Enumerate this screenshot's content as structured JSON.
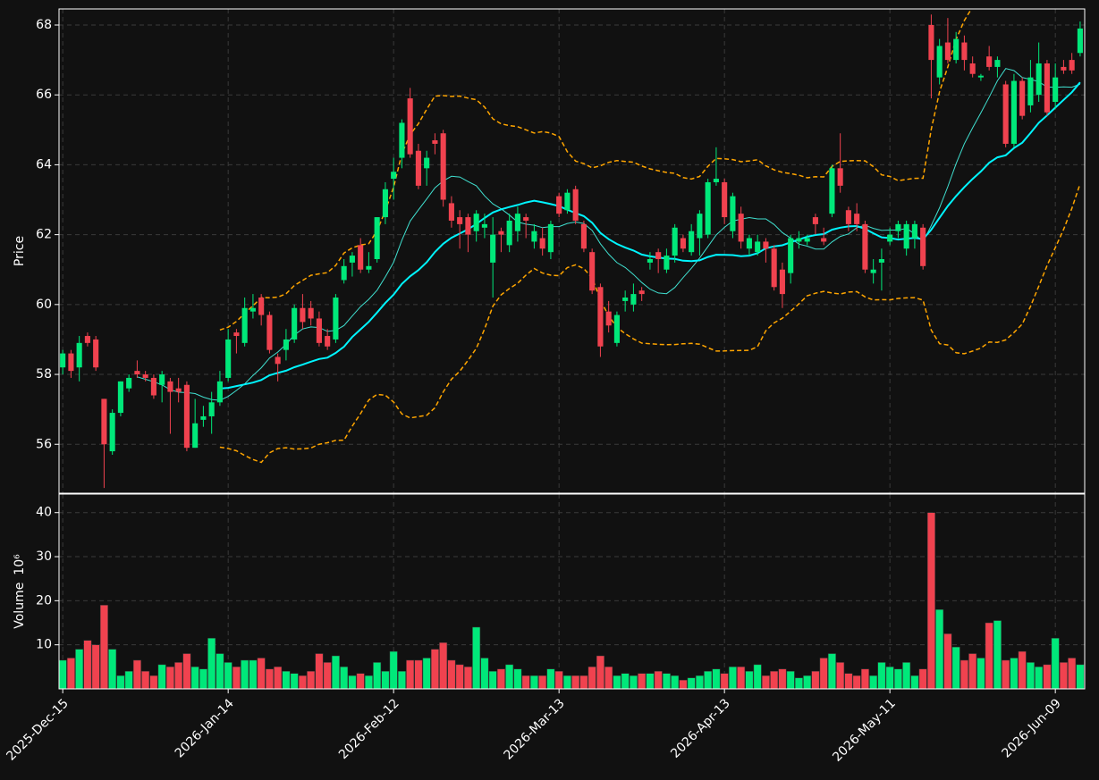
{
  "chart_data": {
    "type": "candlestick",
    "ylabel": "Price",
    "volume_ylabel": "Volume",
    "volume_scale_label": "10⁶",
    "up_color": "#00e87a",
    "down_color": "#f0424f",
    "grid": true,
    "mav": [
      10,
      20
    ],
    "mav_colors": [
      "#40e0d0",
      "#00f5ff"
    ],
    "bollinger": {
      "window": 20,
      "std": 2,
      "color": "#ffa500"
    },
    "xlim": [
      -0.45,
      123.55
    ],
    "xticks": [
      {
        "value": 0,
        "label": "2025-Dec-15"
      },
      {
        "value": 20,
        "label": "2026-Jan-14"
      },
      {
        "value": 40,
        "label": "2026-Feb-12"
      },
      {
        "value": 60,
        "label": "2026-Mar-13"
      },
      {
        "value": 80,
        "label": "2026-Apr-13"
      },
      {
        "value": 100,
        "label": "2026-May-11"
      },
      {
        "value": 120,
        "label": "2026-Jun-09"
      }
    ],
    "ylim": [
      54.6,
      68.46
    ],
    "yticks": [
      56,
      58,
      60,
      62,
      64,
      66,
      68
    ],
    "volume_ylim": [
      0,
      44.2
    ],
    "volume_yticks": [
      10,
      20,
      30,
      40
    ],
    "open": [
      58.2,
      58.6,
      58.2,
      59.1,
      59.0,
      57.3,
      55.8,
      56.9,
      57.6,
      58.1,
      58.0,
      57.9,
      57.7,
      57.8,
      57.6,
      57.7,
      55.9,
      56.7,
      56.8,
      57.2,
      57.9,
      59.2,
      58.9,
      59.8,
      60.2,
      59.7,
      58.5,
      58.7,
      59.0,
      59.9,
      59.9,
      59.6,
      59.1,
      59.0,
      60.7,
      61.2,
      61.7,
      61.0,
      61.3,
      62.5,
      63.6,
      64.2,
      65.9,
      64.4,
      63.9,
      64.7,
      64.9,
      62.9,
      62.5,
      62.5,
      62.1,
      62.2,
      61.2,
      62.1,
      61.7,
      62.1,
      62.5,
      61.8,
      61.9,
      61.5,
      63.1,
      62.7,
      63.3,
      62.3,
      61.5,
      60.5,
      59.8,
      58.9,
      60.1,
      60.0,
      60.4,
      61.2,
      61.5,
      61.0,
      61.4,
      61.9,
      61.5,
      61.9,
      62.0,
      63.5,
      63.5,
      62.1,
      62.6,
      61.6,
      61.5,
      61.8,
      61.6,
      61.0,
      60.9,
      61.8,
      61.8,
      62.5,
      61.9,
      62.6,
      63.9,
      62.7,
      62.6,
      62.3,
      60.9,
      61.2,
      61.8,
      62.1,
      61.6,
      61.9,
      62.2,
      68.0,
      66.5,
      67.5,
      67.0,
      67.5,
      66.9,
      66.5,
      67.1,
      66.8,
      66.3,
      64.6,
      66.4,
      65.7,
      66.0,
      66.9,
      65.8,
      66.8,
      67.0,
      67.2
    ],
    "high": [
      58.7,
      58.7,
      59.1,
      59.2,
      59.1,
      57.3,
      57.0,
      57.8,
      58.0,
      58.4,
      58.1,
      58.0,
      58.1,
      57.9,
      57.9,
      57.8,
      57.3,
      57.1,
      57.5,
      58.1,
      59.3,
      59.3,
      60.2,
      60.3,
      60.3,
      59.8,
      58.6,
      59.3,
      60.0,
      60.3,
      60.1,
      59.8,
      59.3,
      60.3,
      61.3,
      61.5,
      61.9,
      61.5,
      62.5,
      63.5,
      64.2,
      65.3,
      66.2,
      64.6,
      64.4,
      64.9,
      65.0,
      63.1,
      62.7,
      62.6,
      62.7,
      62.6,
      62.5,
      62.2,
      62.6,
      62.8,
      62.6,
      62.3,
      62.2,
      62.4,
      63.2,
      63.3,
      63.4,
      62.4,
      61.6,
      60.6,
      60.1,
      59.8,
      60.4,
      60.6,
      60.5,
      61.5,
      61.6,
      61.6,
      62.3,
      62.0,
      62.3,
      62.7,
      63.6,
      64.5,
      63.6,
      63.2,
      62.8,
      62.0,
      62.0,
      61.9,
      61.7,
      61.2,
      62.0,
      62.1,
      62.0,
      62.6,
      62.2,
      64.0,
      64.9,
      62.8,
      62.9,
      62.4,
      61.3,
      61.6,
      62.2,
      62.4,
      62.4,
      62.4,
      62.3,
      68.3,
      67.6,
      68.2,
      67.8,
      67.7,
      67.1,
      66.6,
      67.4,
      67.1,
      66.4,
      66.6,
      66.5,
      67.0,
      67.5,
      67.0,
      66.9,
      67.0,
      67.2,
      68.1
    ],
    "low": [
      58.0,
      57.9,
      57.8,
      58.8,
      58.1,
      54.75,
      55.7,
      56.8,
      57.5,
      57.9,
      57.8,
      57.3,
      57.2,
      56.3,
      57.2,
      55.8,
      55.9,
      56.5,
      56.3,
      57.1,
      57.8,
      58.6,
      58.8,
      59.6,
      59.4,
      58.6,
      57.8,
      58.4,
      58.9,
      59.3,
      59.4,
      58.8,
      58.7,
      58.9,
      60.6,
      60.8,
      60.9,
      60.9,
      61.2,
      62.3,
      63.0,
      63.9,
      64.2,
      63.3,
      63.4,
      64.3,
      62.8,
      62.2,
      61.6,
      61.5,
      61.8,
      61.9,
      60.2,
      61.5,
      61.5,
      61.8,
      61.9,
      61.6,
      61.4,
      61.3,
      62.5,
      62.6,
      62.3,
      61.5,
      60.3,
      58.5,
      59.2,
      58.8,
      59.8,
      59.8,
      60.1,
      61.0,
      60.9,
      60.9,
      61.2,
      61.5,
      61.4,
      61.4,
      61.9,
      63.4,
      62.3,
      61.9,
      61.6,
      61.4,
      61.4,
      61.2,
      60.4,
      59.9,
      60.6,
      61.6,
      61.7,
      62.0,
      61.7,
      62.5,
      63.2,
      62.1,
      62.1,
      60.9,
      60.6,
      60.4,
      61.7,
      61.9,
      61.4,
      61.6,
      61.0,
      65.9,
      66.3,
      66.9,
      66.9,
      66.7,
      66.5,
      66.4,
      66.7,
      66.5,
      64.5,
      64.5,
      65.3,
      65.5,
      65.8,
      65.4,
      65.6,
      66.6,
      66.6,
      67.1
    ],
    "close": [
      58.6,
      58.1,
      58.9,
      58.9,
      58.2,
      56.0,
      56.9,
      57.8,
      57.9,
      58.0,
      57.9,
      57.4,
      58.0,
      57.5,
      57.5,
      55.9,
      56.6,
      56.8,
      57.2,
      57.8,
      59.0,
      59.1,
      59.9,
      59.9,
      59.7,
      58.7,
      58.3,
      59.0,
      59.9,
      59.5,
      59.6,
      58.9,
      58.8,
      60.2,
      61.1,
      61.4,
      61.0,
      61.1,
      62.5,
      63.3,
      63.8,
      65.2,
      64.3,
      63.4,
      64.2,
      64.6,
      63.0,
      62.4,
      62.3,
      62.0,
      62.6,
      62.3,
      62.0,
      62.0,
      62.4,
      62.6,
      62.4,
      62.1,
      61.6,
      62.3,
      62.6,
      63.2,
      62.4,
      61.6,
      60.4,
      58.8,
      59.4,
      59.7,
      60.2,
      60.3,
      60.3,
      61.3,
      61.3,
      61.4,
      62.2,
      61.6,
      62.1,
      62.6,
      63.5,
      63.6,
      62.5,
      63.1,
      61.8,
      61.9,
      61.8,
      61.6,
      60.5,
      60.3,
      61.9,
      61.9,
      61.9,
      62.3,
      61.8,
      63.9,
      63.4,
      62.3,
      62.3,
      61.0,
      61.0,
      61.3,
      62.0,
      62.3,
      62.3,
      62.3,
      61.1,
      67.0,
      67.4,
      67.0,
      67.6,
      67.0,
      66.6,
      66.55,
      66.8,
      67.0,
      64.6,
      66.4,
      65.4,
      66.5,
      66.9,
      65.5,
      66.5,
      66.7,
      66.7,
      67.9
    ],
    "volume": [
      6.5,
      7,
      9,
      11,
      10,
      19,
      9,
      3,
      4,
      6.5,
      4,
      3,
      5.5,
      5,
      6,
      8,
      5,
      4.5,
      11.5,
      8,
      6,
      5,
      6.5,
      6.5,
      7,
      4.5,
      5,
      4,
      3.5,
      3,
      4,
      8,
      6,
      7.5,
      5,
      3,
      3.5,
      3,
      6,
      4,
      8.5,
      4,
      6.5,
      6.5,
      7,
      9,
      10.5,
      6.5,
      5.5,
      5,
      14,
      7,
      4,
      4.5,
      5.5,
      4.5,
      3,
      3,
      3,
      4.5,
      4,
      3,
      3,
      3,
      5,
      7.5,
      5,
      3,
      3.5,
      3,
      3.5,
      3.5,
      4,
      3.5,
      3,
      2,
      2.5,
      3,
      4,
      4.5,
      3.5,
      5,
      5,
      4,
      5.5,
      3,
      4,
      4.5,
      4,
      2.5,
      3,
      4,
      7,
      8,
      6,
      3.5,
      3,
      4.5,
      3,
      6,
      5,
      4.5,
      6,
      3,
      4.5,
      40,
      18,
      12.5,
      9.5,
      6.5,
      8,
      7,
      15,
      15.5,
      6.5,
      7,
      8.5,
      6,
      5,
      5.5,
      11.5,
      6,
      7,
      5.5
    ]
  }
}
